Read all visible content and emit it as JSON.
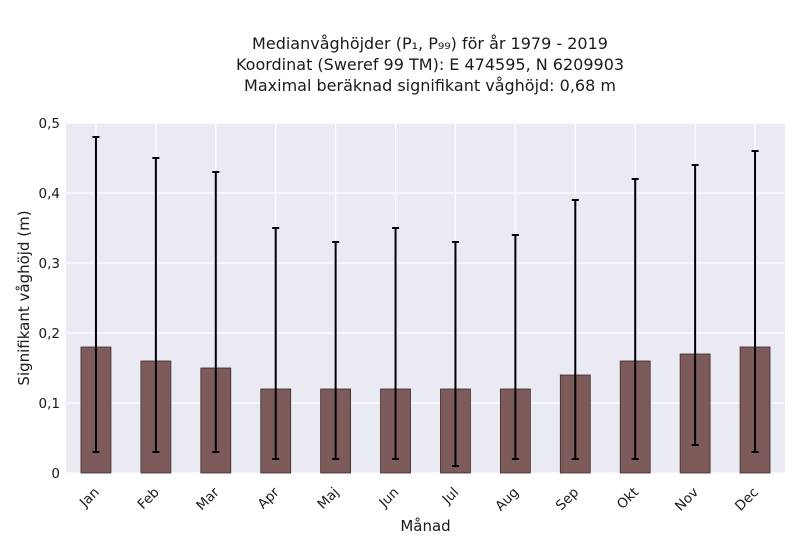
{
  "chart_data": {
    "type": "bar",
    "title_lines": [
      "Medianvåghöjder (P₁, P₉₉) för år 1979 - 2019",
      "Koordinat (Sweref 99 TM): E 474595, N 6209903",
      "Maximal beräknad signifikant våghöjd: 0,68 m"
    ],
    "xlabel": "Månad",
    "ylabel": "Signifikant våghöjd (m)",
    "categories": [
      "Jan",
      "Feb",
      "Mar",
      "Apr",
      "Maj",
      "Jun",
      "Jul",
      "Aug",
      "Sep",
      "Okt",
      "Nov",
      "Dec"
    ],
    "values": [
      0.18,
      0.16,
      0.15,
      0.12,
      0.12,
      0.12,
      0.12,
      0.12,
      0.14,
      0.16,
      0.17,
      0.18
    ],
    "error_low": [
      0.03,
      0.03,
      0.03,
      0.02,
      0.02,
      0.02,
      0.01,
      0.02,
      0.02,
      0.02,
      0.04,
      0.03
    ],
    "error_high": [
      0.48,
      0.45,
      0.43,
      0.35,
      0.33,
      0.35,
      0.33,
      0.34,
      0.39,
      0.42,
      0.44,
      0.46
    ],
    "ylim": [
      0,
      0.5
    ],
    "yticks": [
      0,
      0.1,
      0.2,
      0.3,
      0.4,
      0.5
    ],
    "ytick_labels": [
      "0",
      "0,1",
      "0,2",
      "0,3",
      "0,4",
      "0,5"
    ],
    "grid": true,
    "colors": {
      "bar": "#7d5b5b",
      "bar_edge": "#3d2a2a",
      "plot_bg": "#eaeaf2",
      "grid": "#ffffff",
      "error": "#000000"
    }
  }
}
